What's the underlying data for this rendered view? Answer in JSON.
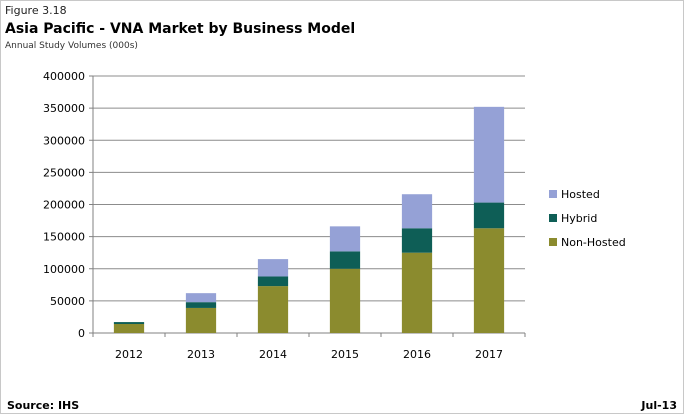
{
  "header": {
    "figure_label": "Figure 3.18",
    "title": "Asia Pacific - VNA Market by Business Model",
    "subtitle": "Annual Study Volumes (000s)"
  },
  "footer": {
    "source": "Source: IHS",
    "date": "Jul-13"
  },
  "chart_data": {
    "type": "bar",
    "stacked": true,
    "title": "Asia Pacific - VNA Market by Business Model",
    "subtitle": "Annual Study Volumes (000s)",
    "xlabel": "",
    "ylabel": "",
    "categories": [
      "2012",
      "2013",
      "2014",
      "2015",
      "2016",
      "2017"
    ],
    "ylim": [
      0,
      400000
    ],
    "yticks": [
      0,
      50000,
      100000,
      150000,
      200000,
      250000,
      300000,
      350000,
      400000
    ],
    "grid": true,
    "legend_position": "right",
    "series": [
      {
        "name": "Non-Hosted",
        "color": "#8b8b2e",
        "values": [
          14000,
          39000,
          73000,
          100000,
          125000,
          163000
        ]
      },
      {
        "name": "Hybrid",
        "color": "#0e5e56",
        "values": [
          3000,
          9000,
          15000,
          27000,
          38000,
          40000
        ]
      },
      {
        "name": "Hosted",
        "color": "#95a1d6",
        "values": [
          0,
          14000,
          27000,
          39000,
          53000,
          149000
        ]
      }
    ]
  }
}
